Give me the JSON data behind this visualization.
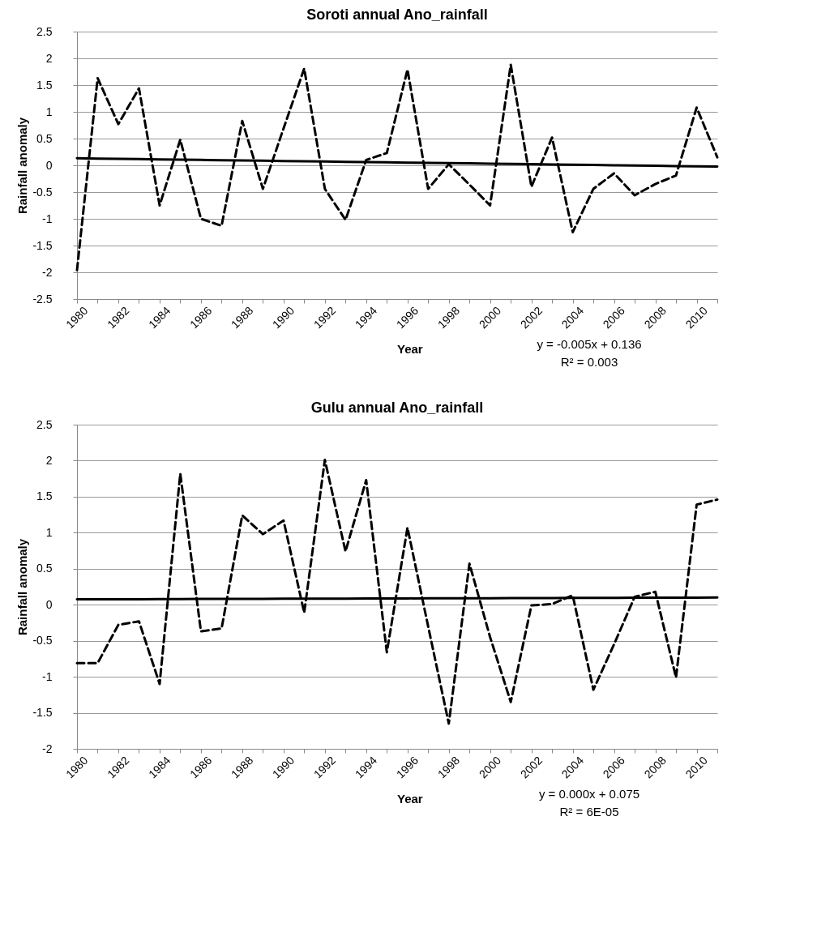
{
  "chart_data": [
    {
      "type": "line",
      "title": "Soroti annual Ano_rainfall",
      "xlabel": "Year",
      "ylabel": "Rainfall anomaly",
      "categories": [
        "1980",
        null,
        "1982",
        null,
        "1984",
        null,
        "1986",
        null,
        "1988",
        null,
        "1990",
        null,
        "1992",
        null,
        "1994",
        null,
        "1996",
        null,
        "1998",
        null,
        "2000",
        null,
        "2002",
        null,
        "2004",
        null,
        "2006",
        null,
        "2008",
        null,
        "2010",
        null
      ],
      "series": [
        {
          "color": "#000000",
          "line_style": "dashed",
          "values": [
            -1.96,
            1.63,
            0.77,
            1.44,
            -0.75,
            0.48,
            -1.0,
            -1.13,
            0.83,
            -0.44,
            0.69,
            1.81,
            -0.44,
            -1.02,
            0.1,
            0.23,
            1.79,
            -0.44,
            0.02,
            -0.36,
            -0.75,
            1.88,
            -0.4,
            0.52,
            -1.25,
            -0.44,
            -0.15,
            -0.56,
            -0.35,
            -0.19,
            1.08,
            0.15
          ]
        },
        {
          "color": "#000000",
          "line_style": "solid",
          "values": [
            0.131,
            0.126,
            0.121,
            0.116,
            0.111,
            0.106,
            0.101,
            0.096,
            0.091,
            0.086,
            0.081,
            0.076,
            0.071,
            0.066,
            0.061,
            0.056,
            0.051,
            0.046,
            0.041,
            0.036,
            0.031,
            0.026,
            0.021,
            0.016,
            0.011,
            0.006,
            0.001,
            -0.004,
            -0.009,
            -0.014,
            -0.019,
            -0.024
          ]
        }
      ],
      "ylim": [
        -2.5,
        2.5
      ],
      "yticks": [
        -2.5,
        -2,
        -1.5,
        -1,
        -0.5,
        0,
        0.5,
        1,
        1.5,
        2,
        2.5
      ],
      "grid": "y",
      "legend": false,
      "annotations": [
        "y = -0.005x + 0.136",
        "R² = 0.003"
      ]
    },
    {
      "type": "line",
      "title": "Gulu annual Ano_rainfall",
      "xlabel": "Year",
      "ylabel": "Rainfall anomaly",
      "categories": [
        "1980",
        null,
        "1982",
        null,
        "1984",
        null,
        "1986",
        null,
        "1988",
        null,
        "1990",
        null,
        "1992",
        null,
        "1994",
        null,
        "1996",
        null,
        "1998",
        null,
        "2000",
        null,
        "2002",
        null,
        "2004",
        null,
        "2006",
        null,
        "2008",
        null,
        "2010",
        null
      ],
      "series": [
        {
          "color": "#000000",
          "line_style": "dashed",
          "values": [
            -0.81,
            -0.81,
            -0.28,
            -0.23,
            -1.1,
            1.82,
            -0.37,
            -0.33,
            1.24,
            0.98,
            1.17,
            -0.11,
            2.01,
            0.74,
            1.73,
            -0.66,
            1.07,
            -0.3,
            -1.65,
            0.57,
            -0.45,
            -1.35,
            -0.01,
            0.01,
            0.13,
            -1.18,
            -0.55,
            0.11,
            0.18,
            -1.01,
            1.39,
            1.46
          ]
        },
        {
          "color": "#000000",
          "line_style": "solid",
          "values": [
            0.075,
            0.076,
            0.077,
            0.077,
            0.078,
            0.079,
            0.08,
            0.081,
            0.081,
            0.082,
            0.083,
            0.084,
            0.085,
            0.085,
            0.086,
            0.087,
            0.088,
            0.089,
            0.089,
            0.09,
            0.091,
            0.092,
            0.093,
            0.093,
            0.094,
            0.095,
            0.096,
            0.097,
            0.097,
            0.098,
            0.099,
            0.1
          ]
        }
      ],
      "ylim": [
        -2,
        2.5
      ],
      "yticks": [
        -2,
        -1.5,
        -1,
        -0.5,
        0,
        0.5,
        1,
        1.5,
        2,
        2.5
      ],
      "grid": "y",
      "legend": false,
      "annotations": [
        "y = 0.000x + 0.075",
        "R² = 6E-05"
      ]
    }
  ]
}
